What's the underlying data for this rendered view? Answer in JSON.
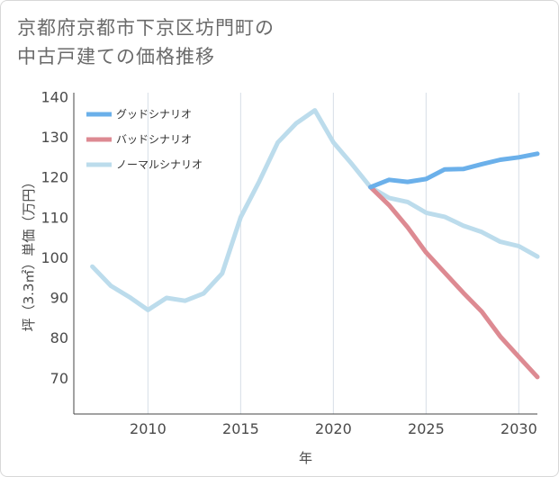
{
  "title_lines": [
    "京都府京都市下京区坊門町の",
    "中古戸建ての価格推移"
  ],
  "chart_data": {
    "type": "line",
    "title": "京都府京都市下京区坊門町の中古戸建ての価格推移",
    "xlabel": "年",
    "ylabel": "坪（3.3㎡）単価（万円）",
    "xlim": [
      2006,
      2031
    ],
    "ylim": [
      61,
      141
    ],
    "x_ticks": [
      2010,
      2015,
      2020,
      2025,
      2030
    ],
    "y_ticks": [
      70,
      80,
      90,
      100,
      110,
      120,
      130,
      140
    ],
    "grid": "vertical",
    "legend_position": "top-left",
    "series": [
      {
        "name": "グッドシナリオ",
        "color": "#6bb0ea",
        "x": [
          2022,
          2023,
          2024,
          2025,
          2026,
          2027,
          2028,
          2029,
          2030,
          2031
        ],
        "values": [
          117.5,
          119.3,
          118.8,
          119.5,
          121.9,
          122.0,
          123.2,
          124.3,
          124.9,
          125.8
        ]
      },
      {
        "name": "バッドシナリオ",
        "color": "#dd8a92",
        "x": [
          2022,
          2023,
          2024,
          2025,
          2026,
          2027,
          2028,
          2029,
          2030,
          2031
        ],
        "values": [
          117.5,
          113.0,
          107.5,
          101.2,
          96.2,
          91.2,
          86.5,
          80.3,
          75.2,
          70.2
        ]
      },
      {
        "name": "ノーマルシナリオ",
        "color": "#bcdcec",
        "x": [
          2007,
          2008,
          2009,
          2010,
          2011,
          2012,
          2013,
          2014,
          2015,
          2016,
          2017,
          2018,
          2019,
          2020,
          2021,
          2022,
          2023,
          2024,
          2025,
          2026,
          2027,
          2028,
          2029,
          2030,
          2031
        ],
        "values": [
          97.7,
          92.9,
          90.1,
          86.9,
          89.9,
          89.2,
          91.0,
          96.0,
          110.0,
          118.9,
          128.6,
          133.4,
          136.6,
          128.6,
          123.2,
          117.5,
          114.8,
          113.8,
          111.1,
          110.1,
          107.9,
          106.3,
          103.9,
          102.8,
          100.2
        ]
      }
    ]
  }
}
